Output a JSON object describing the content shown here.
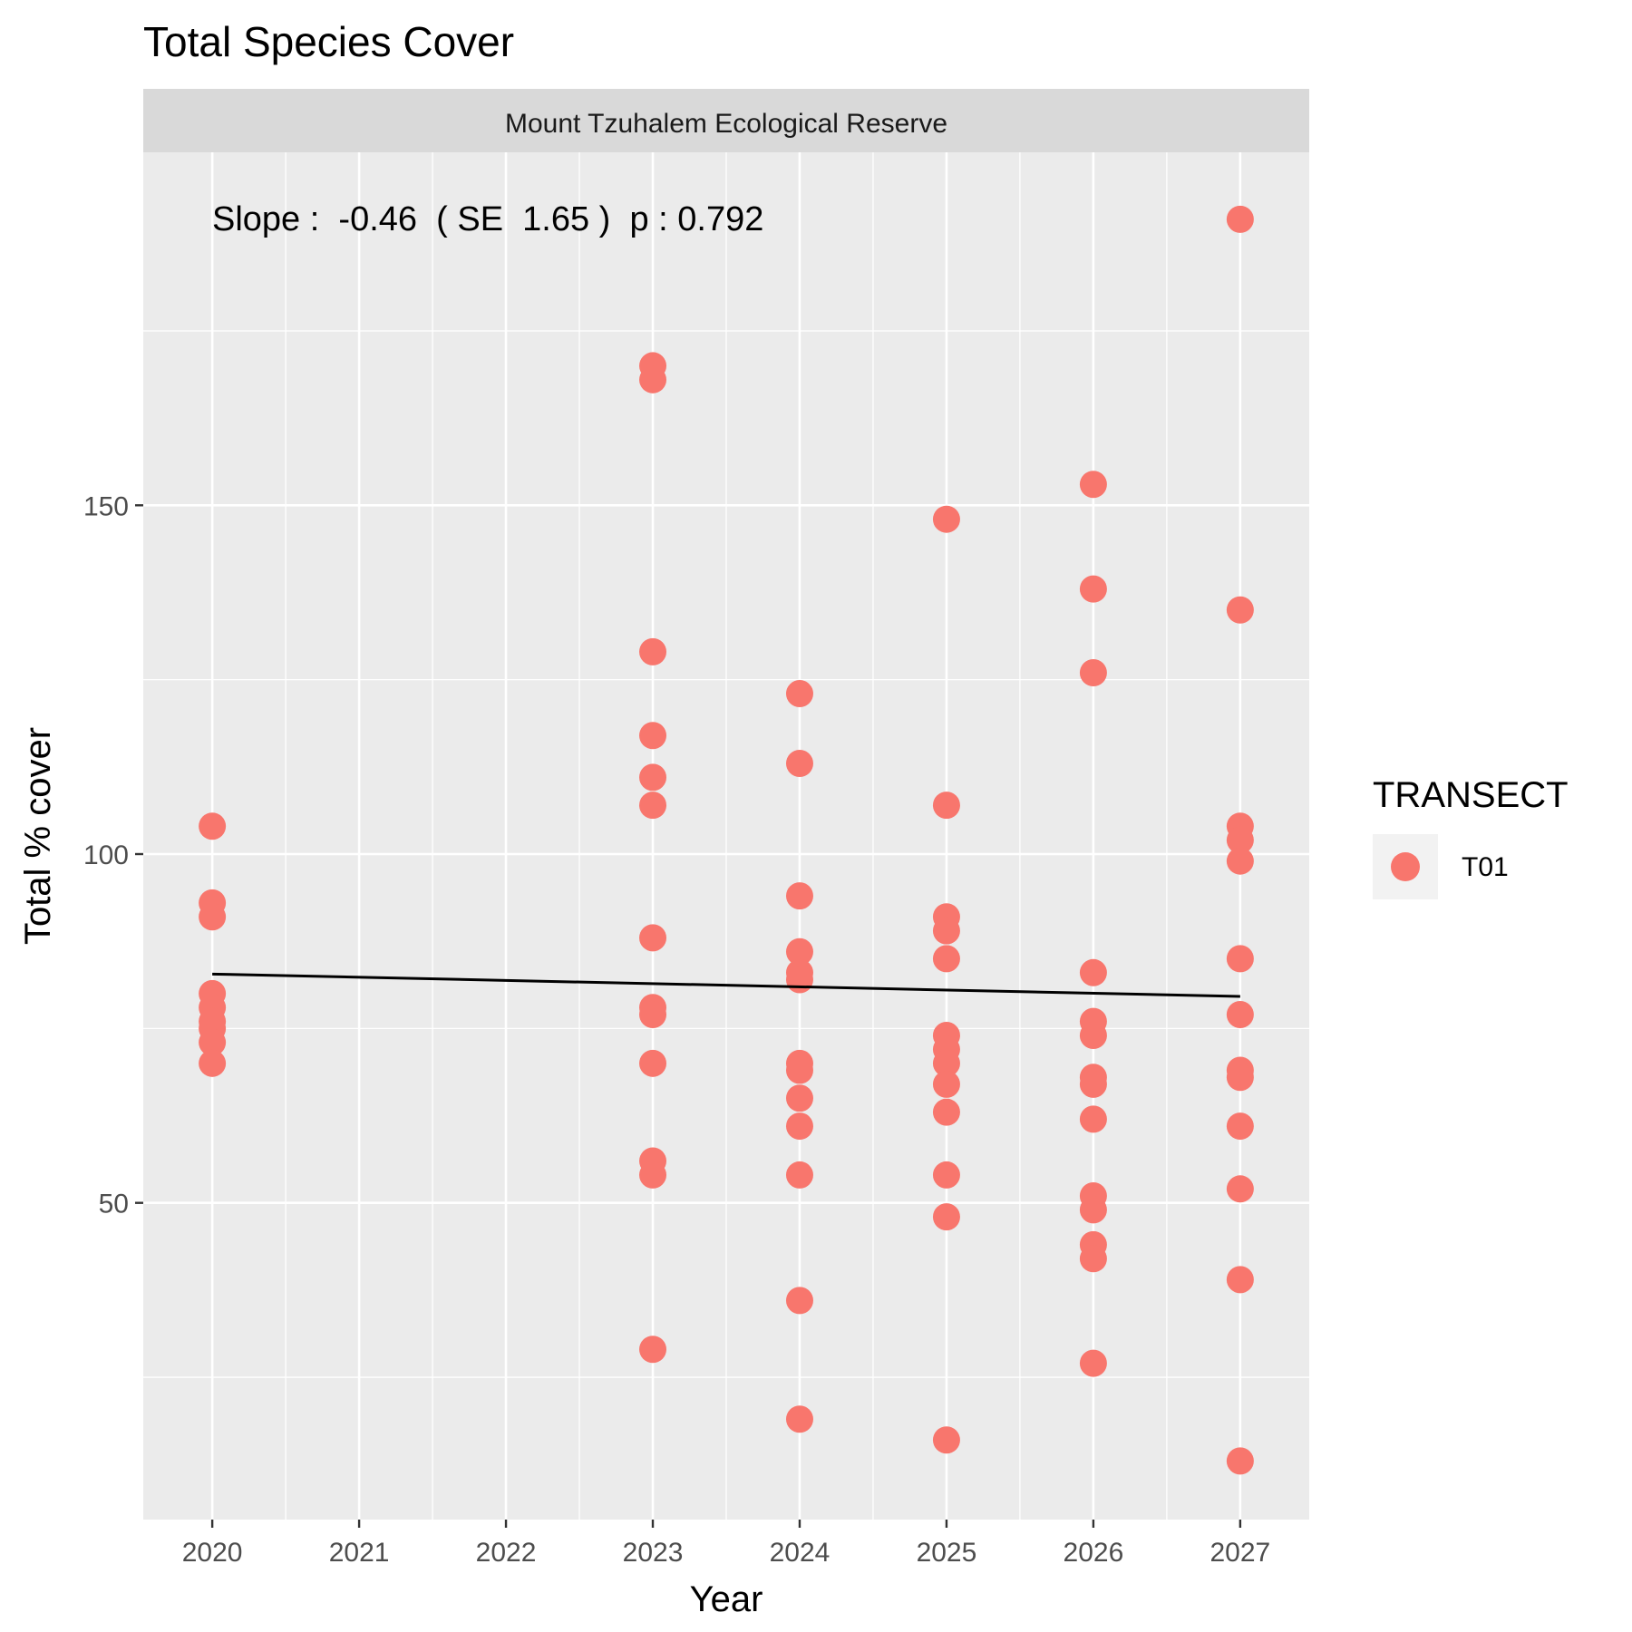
{
  "chart_data": {
    "type": "scatter",
    "title": "Total Species Cover",
    "facet_label": "Mount Tzuhalem Ecological Reserve",
    "xlabel": "Year",
    "ylabel": "Total % cover",
    "xlim": [
      2019.53,
      2027.47
    ],
    "ylim": [
      4.6,
      200.6
    ],
    "x_ticks": [
      2020,
      2021,
      2022,
      2023,
      2024,
      2025,
      2026,
      2027
    ],
    "y_ticks": [
      50,
      100,
      150
    ],
    "grid": true,
    "annotation": "Slope :  -0.46  ( SE  1.65 )  p : 0.792",
    "legend": {
      "title": "TRANSECT",
      "position": "right",
      "entries": [
        {
          "label": "T01",
          "color": "#F8766D"
        }
      ]
    },
    "series": [
      {
        "name": "T01",
        "color": "#F8766D",
        "points": [
          [
            2020,
            104
          ],
          [
            2020,
            93
          ],
          [
            2020,
            91
          ],
          [
            2020,
            80
          ],
          [
            2020,
            78
          ],
          [
            2020,
            76
          ],
          [
            2020,
            75
          ],
          [
            2020,
            73
          ],
          [
            2020,
            70
          ],
          [
            2023,
            170
          ],
          [
            2023,
            168
          ],
          [
            2023,
            129
          ],
          [
            2023,
            117
          ],
          [
            2023,
            111
          ],
          [
            2023,
            107
          ],
          [
            2023,
            88
          ],
          [
            2023,
            78
          ],
          [
            2023,
            77
          ],
          [
            2023,
            70
          ],
          [
            2023,
            56
          ],
          [
            2023,
            54
          ],
          [
            2023,
            29
          ],
          [
            2024,
            123
          ],
          [
            2024,
            113
          ],
          [
            2024,
            94
          ],
          [
            2024,
            86
          ],
          [
            2024,
            83
          ],
          [
            2024,
            82
          ],
          [
            2024,
            70
          ],
          [
            2024,
            69
          ],
          [
            2024,
            65
          ],
          [
            2024,
            61
          ],
          [
            2024,
            54
          ],
          [
            2024,
            36
          ],
          [
            2024,
            19
          ],
          [
            2025,
            148
          ],
          [
            2025,
            107
          ],
          [
            2025,
            91
          ],
          [
            2025,
            89
          ],
          [
            2025,
            85
          ],
          [
            2025,
            74
          ],
          [
            2025,
            72
          ],
          [
            2025,
            70
          ],
          [
            2025,
            67
          ],
          [
            2025,
            63
          ],
          [
            2025,
            54
          ],
          [
            2025,
            48
          ],
          [
            2025,
            16
          ],
          [
            2026,
            153
          ],
          [
            2026,
            138
          ],
          [
            2026,
            126
          ],
          [
            2026,
            83
          ],
          [
            2026,
            76
          ],
          [
            2026,
            74
          ],
          [
            2026,
            68
          ],
          [
            2026,
            67
          ],
          [
            2026,
            62
          ],
          [
            2026,
            51
          ],
          [
            2026,
            49
          ],
          [
            2026,
            44
          ],
          [
            2026,
            42
          ],
          [
            2026,
            27
          ],
          [
            2027,
            191
          ],
          [
            2027,
            135
          ],
          [
            2027,
            104
          ],
          [
            2027,
            102
          ],
          [
            2027,
            99
          ],
          [
            2027,
            85
          ],
          [
            2027,
            77
          ],
          [
            2027,
            69
          ],
          [
            2027,
            68
          ],
          [
            2027,
            61
          ],
          [
            2027,
            52
          ],
          [
            2027,
            39
          ],
          [
            2027,
            13
          ]
        ]
      }
    ],
    "trend_line": {
      "x": [
        2020,
        2027
      ],
      "y": [
        82.8,
        79.6
      ]
    }
  }
}
